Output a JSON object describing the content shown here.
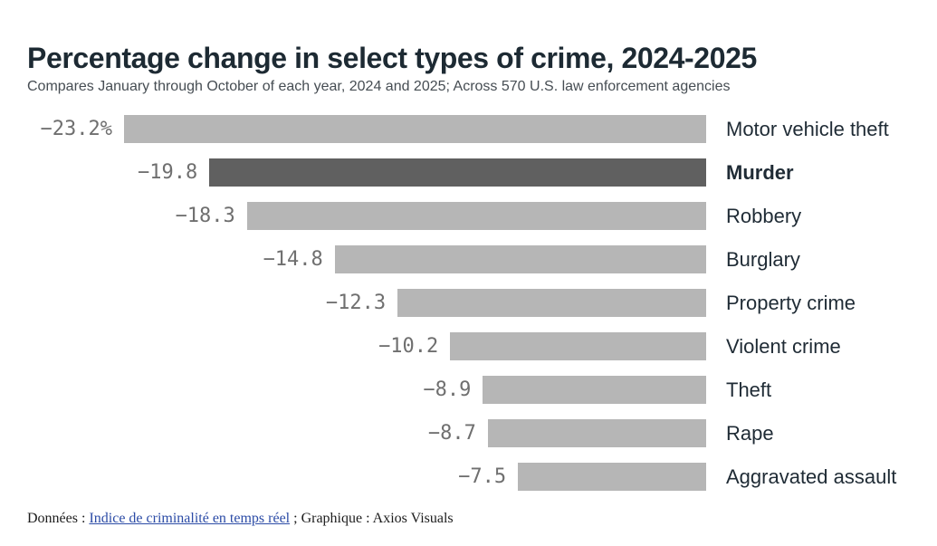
{
  "header": {
    "title": "Percentage change in select types of crime, 2024-2025",
    "subtitle": "Compares January through October of each year, 2024 and 2025; Across 570 U.S. law enforcement agencies"
  },
  "chart_data": {
    "type": "bar",
    "orientation": "horizontal",
    "categories": [
      "Motor vehicle theft",
      "Murder",
      "Robbery",
      "Burglary",
      "Property crime",
      "Violent crime",
      "Theft",
      "Rape",
      "Aggravated assault"
    ],
    "values": [
      -23.2,
      -19.8,
      -18.3,
      -14.8,
      -12.3,
      -10.2,
      -8.9,
      -8.7,
      -7.5
    ],
    "value_labels": [
      "−23.2%",
      "−19.8",
      "−18.3",
      "−14.8",
      "−12.3",
      "−10.2",
      "−8.9",
      "−8.7",
      "−7.5"
    ],
    "highlight_category": "Murder",
    "xlim": [
      -23.2,
      0
    ],
    "grid": false,
    "legend": false,
    "bar_color": "#b6b6b6",
    "highlight_bar_color": "#606060",
    "value_label_color": "#6f6f6f",
    "category_label_color": "#1f2b35"
  },
  "footer": {
    "prefix": "Données : ",
    "link_text": "Indice de criminalité en temps réel",
    "suffix": " ; Graphique : Axios Visuals"
  }
}
